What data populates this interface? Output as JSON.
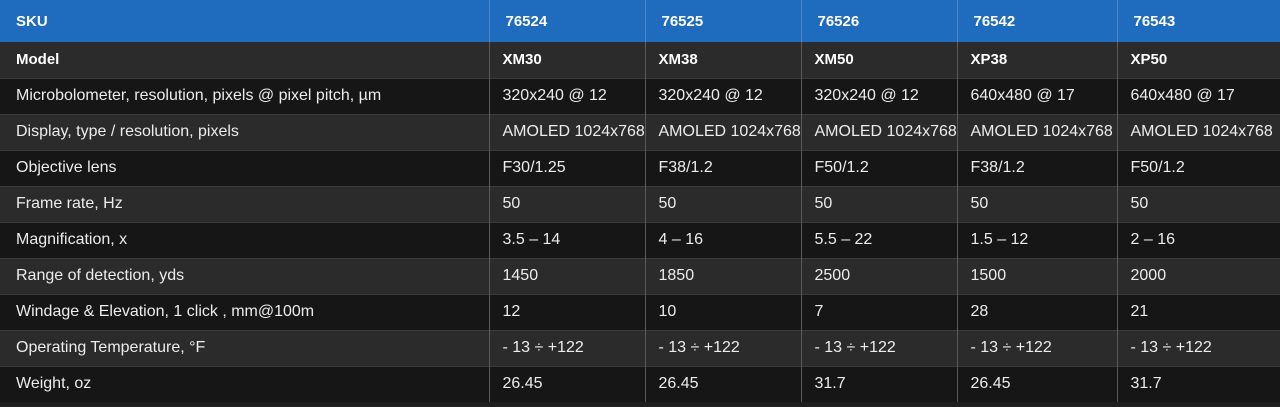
{
  "header": {
    "label": "SKU",
    "skus": [
      "76524",
      "76525",
      "76526",
      "76542",
      "76543"
    ]
  },
  "rows": [
    {
      "label": "Model",
      "values": [
        "XM30",
        "XM38",
        "XM50",
        "XP38",
        "XP50"
      ]
    },
    {
      "label": "Microbolometer, resolution, pixels @ pixel pitch, µm",
      "values": [
        "320x240 @ 12",
        "320x240 @ 12",
        "320x240 @ 12",
        "640x480 @ 17",
        "640x480 @ 17"
      ]
    },
    {
      "label": "Display, type / resolution, pixels",
      "values": [
        "AMOLED 1024x768",
        "AMOLED 1024x768",
        "AMOLED 1024x768",
        "AMOLED 1024x768",
        "AMOLED 1024x768"
      ]
    },
    {
      "label": "Objective lens",
      "values": [
        "F30/1.25",
        "F38/1.2",
        "F50/1.2",
        "F38/1.2",
        "F50/1.2"
      ]
    },
    {
      "label": "Frame rate, Hz",
      "values": [
        "50",
        "50",
        "50",
        "50",
        "50"
      ]
    },
    {
      "label": "Magnification, x",
      "values": [
        "3.5 – 14",
        "4 – 16",
        "5.5 – 22",
        "1.5 – 12",
        "2 – 16"
      ]
    },
    {
      "label": "Range of detection, yds",
      "values": [
        "1450",
        "1850",
        "2500",
        "1500",
        "2000"
      ]
    },
    {
      "label": "Windage & Elevation, 1 click , mm@100m",
      "values": [
        "12",
        "10",
        "7",
        "28",
        "21"
      ]
    },
    {
      "label": "Operating Temperature, °F",
      "values": [
        "- 13 ÷ +122",
        "- 13 ÷ +122",
        "- 13 ÷ +122",
        "- 13 ÷ +122",
        "- 13 ÷ +122"
      ]
    },
    {
      "label": "Weight, oz",
      "values": [
        "26.45",
        "26.45",
        "31.7",
        "26.45",
        "31.7"
      ]
    }
  ],
  "colors": {
    "header_bg": "#1f6bbd",
    "row_light": "#2b2b2b",
    "row_dark": "#161616",
    "text": "#ececec"
  }
}
